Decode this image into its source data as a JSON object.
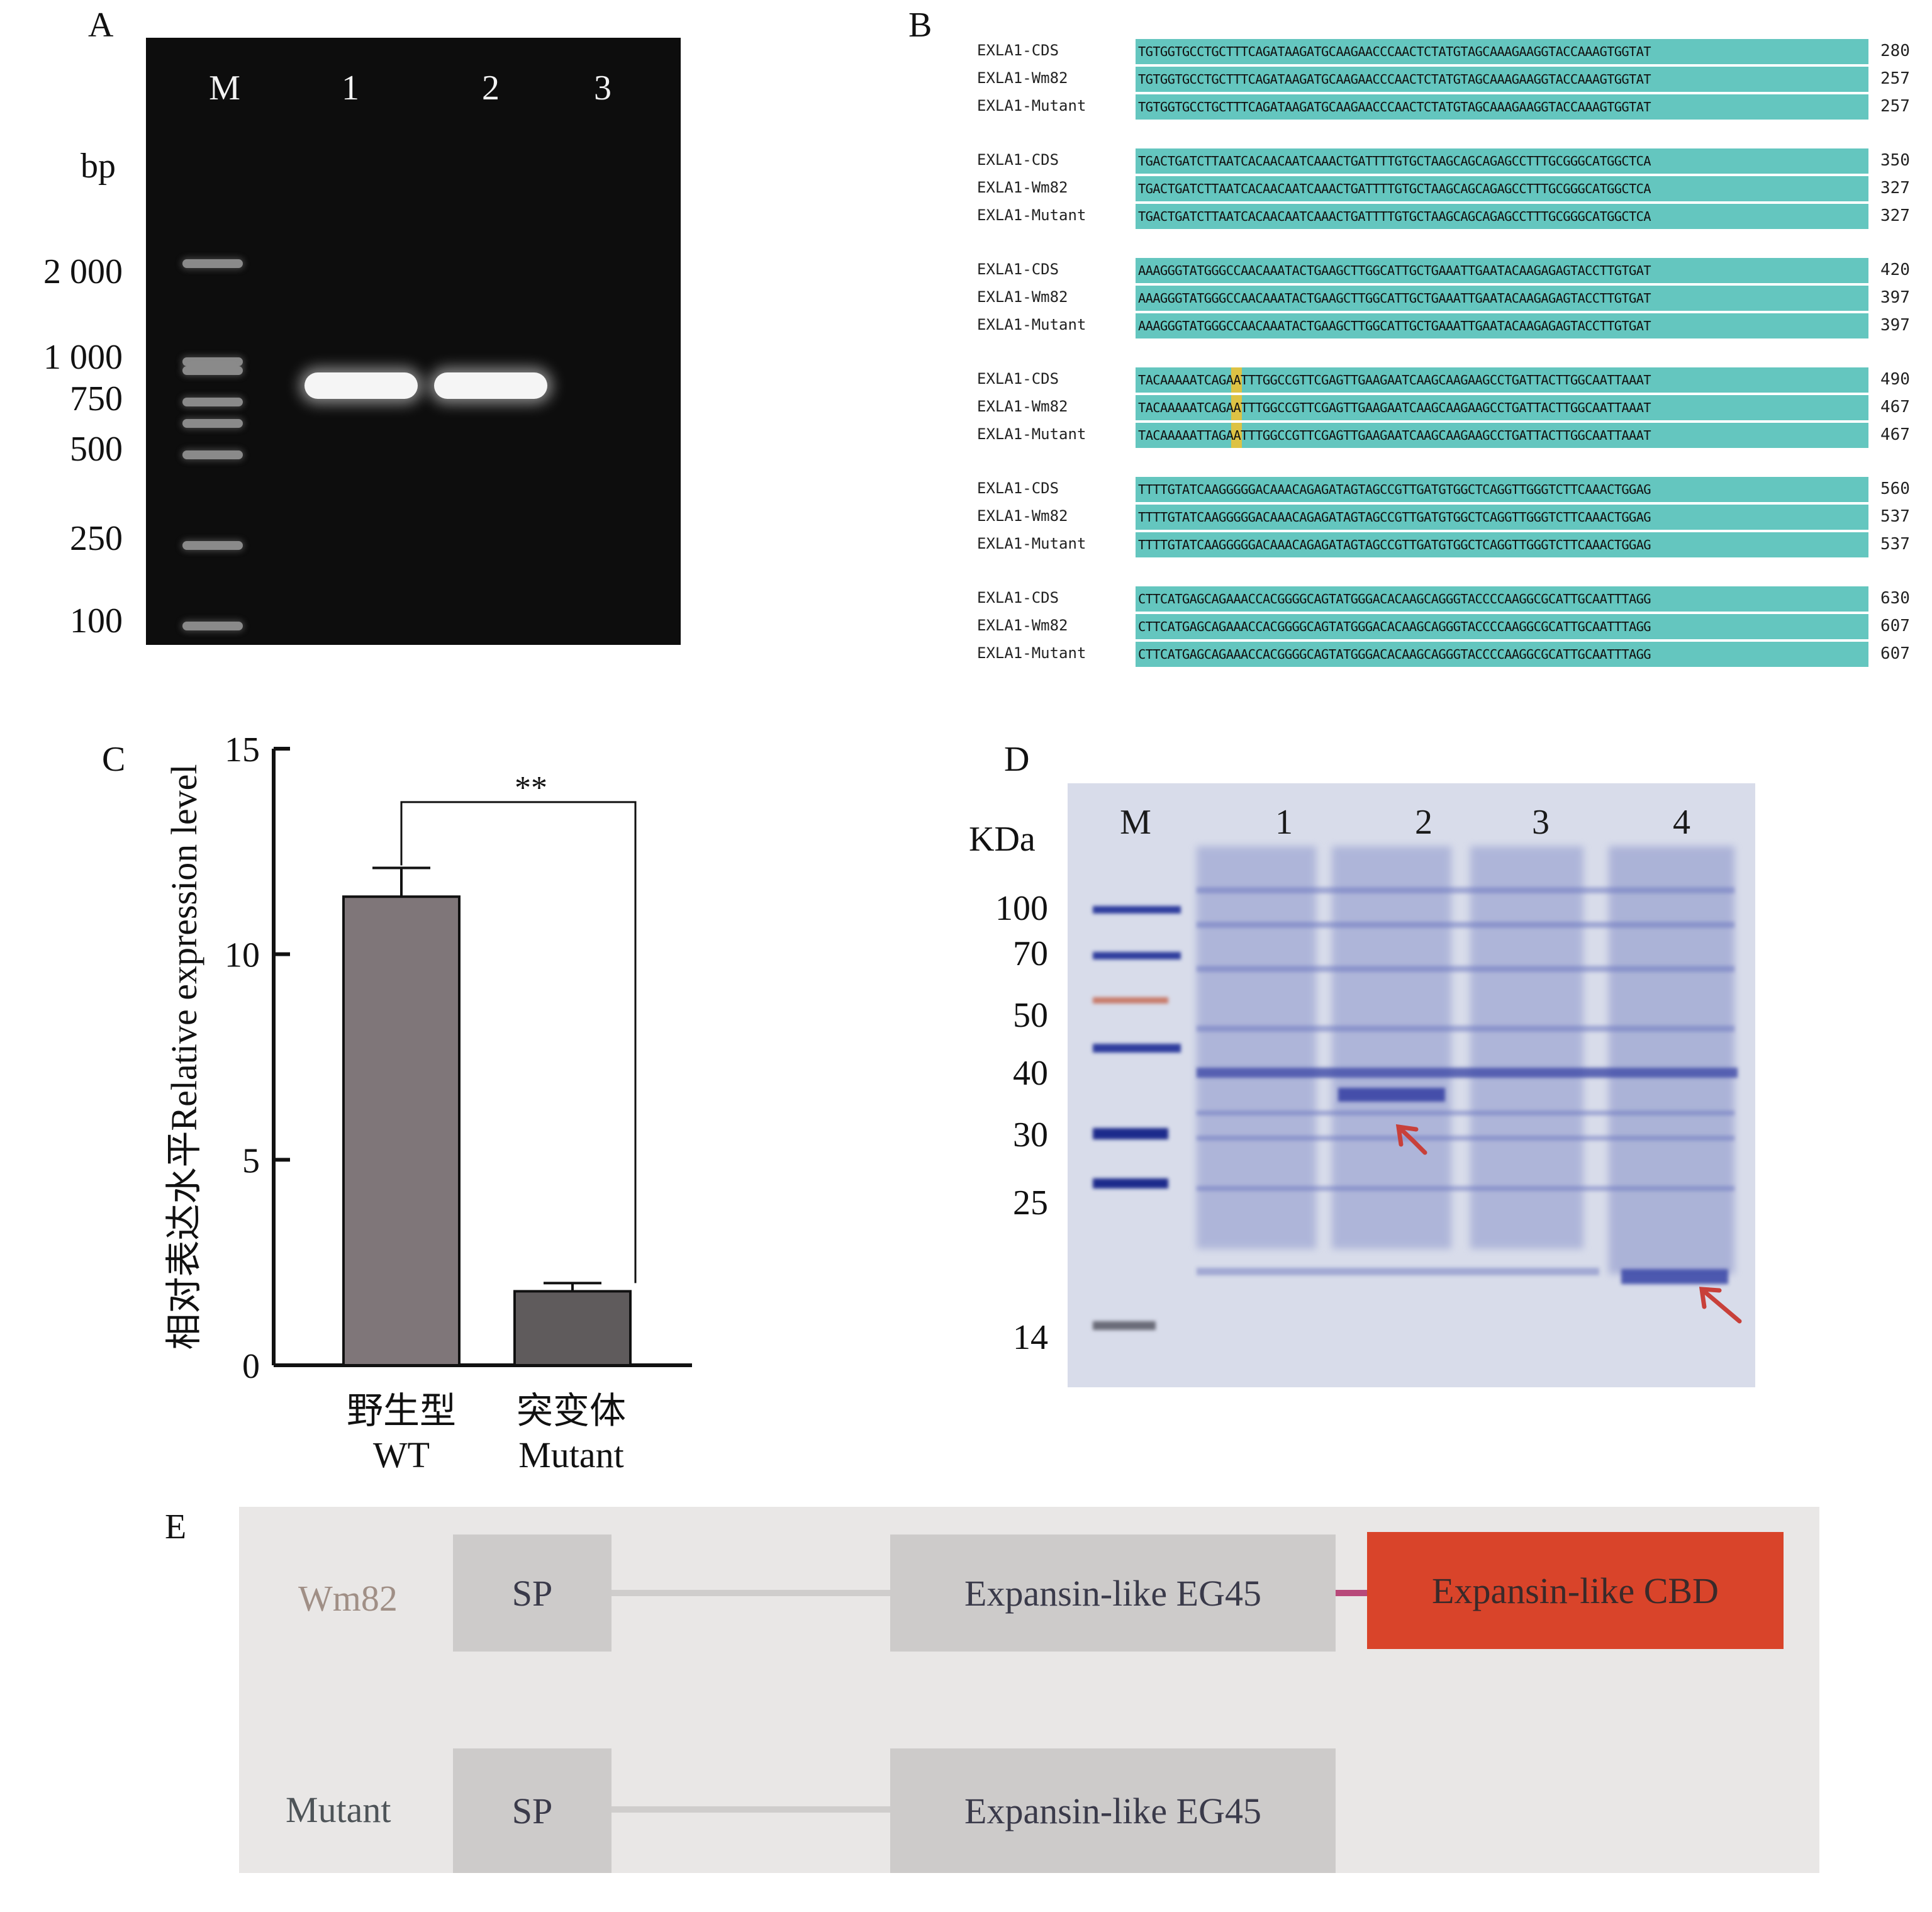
{
  "panelA": {
    "letter": "A",
    "lanes": [
      "M",
      "1",
      "2",
      "3"
    ],
    "unit": "bp",
    "ladder": [
      "2 000",
      "1 000",
      "750",
      "500",
      "250",
      "100"
    ]
  },
  "panelB": {
    "letter": "B",
    "blocks": [
      {
        "rows": [
          {
            "name": "EXLA1-CDS",
            "seq": "TGTGGTGCCTGCTTTCAGATAAGATGCAAGAACCCAACTCTATGTAGCAAAGAAGGTACCAAAGTGGTAT",
            "num": "280"
          },
          {
            "name": "EXLA1-Wm82",
            "seq": "TGTGGTGCCTGCTTTCAGATAAGATGCAAGAACCCAACTCTATGTAGCAAAGAAGGTACCAAAGTGGTAT",
            "num": "257"
          },
          {
            "name": "EXLA1-Mutant",
            "seq": "TGTGGTGCCTGCTTTCAGATAAGATGCAAGAACCCAACTCTATGTAGCAAAGAAGGTACCAAAGTGGTAT",
            "num": "257"
          }
        ]
      },
      {
        "rows": [
          {
            "name": "EXLA1-CDS",
            "seq": "TGACTGATCTTAATCACAACAATCAAACTGATTTTGTGCTAAGCAGCAGAGCCTTTGCGGGCATGGCTCA",
            "num": "350"
          },
          {
            "name": "EXLA1-Wm82",
            "seq": "TGACTGATCTTAATCACAACAATCAAACTGATTTTGTGCTAAGCAGCAGAGCCTTTGCGGGCATGGCTCA",
            "num": "327"
          },
          {
            "name": "EXLA1-Mutant",
            "seq": "TGACTGATCTTAATCACAACAATCAAACTGATTTTGTGCTAAGCAGCAGAGCCTTTGCGGGCATGGCTCA",
            "num": "327"
          }
        ]
      },
      {
        "rows": [
          {
            "name": "EXLA1-CDS",
            "seq": "AAAGGGTATGGGCCAACAAATACTGAAGCTTGGCATTGCTGAAATTGAATACAAGAGAGTACCTTGTGAT",
            "num": "420"
          },
          {
            "name": "EXLA1-Wm82",
            "seq": "AAAGGGTATGGGCCAACAAATACTGAAGCTTGGCATTGCTGAAATTGAATACAAGAGAGTACCTTGTGAT",
            "num": "397"
          },
          {
            "name": "EXLA1-Mutant",
            "seq": "AAAGGGTATGGGCCAACAAATACTGAAGCTTGGCATTGCTGAAATTGAATACAAGAGAGTACCTTGTGAT",
            "num": "397"
          }
        ]
      },
      {
        "rows": [
          {
            "name": "EXLA1-CDS",
            "seq": "TACAAAAATCAGAATTTGGCCGTTCGAGTTGAAGAATCAAGCAAGAAGCCTGATTACTTGGCAATTAAAT",
            "num": "490"
          },
          {
            "name": "EXLA1-Wm82",
            "seq": "TACAAAAATCAGAATTTGGCCGTTCGAGTTGAAGAATCAAGCAAGAAGCCTGATTACTTGGCAATTAAAT",
            "num": "467"
          },
          {
            "name": "EXLA1-Mutant",
            "seq": "TACAAAAATTAGAATTTGGCCGTTCGAGTTGAAGAATCAAGCAAGAAGCCTGATTACTTGGCAATTAAAT",
            "num": "467"
          }
        ]
      },
      {
        "rows": [
          {
            "name": "EXLA1-CDS",
            "seq": "TTTTGTATCAAGGGGGACAAACAGAGATAGTAGCCGTTGATGTGGCTCAGGTTGGGTCTTCAAACTGGAG",
            "num": "560"
          },
          {
            "name": "EXLA1-Wm82",
            "seq": "TTTTGTATCAAGGGGGACAAACAGAGATAGTAGCCGTTGATGTGGCTCAGGTTGGGTCTTCAAACTGGAG",
            "num": "537"
          },
          {
            "name": "EXLA1-Mutant",
            "seq": "TTTTGTATCAAGGGGGACAAACAGAGATAGTAGCCGTTGATGTGGCTCAGGTTGGGTCTTCAAACTGGAG",
            "num": "537"
          }
        ]
      },
      {
        "rows": [
          {
            "name": "EXLA1-CDS",
            "seq": "CTTCATGAGCAGAAACCACGGGGCAGTATGGGACACAAGCAGGGTACCCCAAGGCGCATTGCAATTTAGG",
            "num": "630"
          },
          {
            "name": "EXLA1-Wm82",
            "seq": "CTTCATGAGCAGAAACCACGGGGCAGTATGGGACACAAGCAGGGTACCCCAAGGCGCATTGCAATTTAGG",
            "num": "607"
          },
          {
            "name": "EXLA1-Mutant",
            "seq": "CTTCATGAGCAGAAACCACGGGGCAGTATGGGACACAAGCAGGGTACCCCAAGGCGCATTGCAATTTAGG",
            "num": "607"
          }
        ]
      }
    ],
    "highlight_color": "#f2c12e",
    "seq_bg_color": "#64c6bf"
  },
  "panelC": {
    "letter": "C",
    "significance": "**"
  },
  "chart_data": {
    "type": "bar",
    "categories": [
      "野生型\nWT",
      "突变体\nMutant"
    ],
    "values": [
      11.4,
      1.8
    ],
    "errors": [
      0.7,
      0.2
    ],
    "ylabel": "相对表达水平Relative expression level",
    "xlabel": "",
    "ylim": [
      0,
      15
    ],
    "yticks": [
      0,
      5,
      10,
      15
    ],
    "bar_colors": [
      "#7f7679",
      "#5f5b5c"
    ]
  },
  "panelD": {
    "letter": "D",
    "unit": "KDa",
    "lanes": [
      "M",
      "1",
      "2",
      "3",
      "4"
    ],
    "markers": [
      "100",
      "70",
      "50",
      "40",
      "30",
      "25",
      "14"
    ],
    "arrow_color": "#c8403a"
  },
  "panelE": {
    "letter": "E",
    "rows": [
      {
        "label": "Wm82",
        "sp": "SP",
        "eg45": "Expansin-like EG45",
        "cbd": "Expansin-like CBD"
      },
      {
        "label": "Mutant",
        "sp": "SP",
        "eg45": "Expansin-like EG45"
      }
    ],
    "cbd_color": "#d9442a"
  }
}
